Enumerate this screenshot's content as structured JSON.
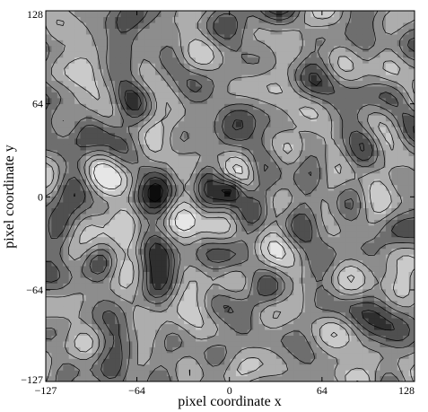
{
  "chart_data": {
    "type": "heatmap",
    "subtype": "filled-contour",
    "title": "",
    "xlabel": "pixel coordinate x",
    "ylabel": "pixel coordinate y",
    "xlim": [
      -127,
      128
    ],
    "ylim": [
      -127,
      128
    ],
    "xticks": [
      -127,
      -64,
      0,
      64,
      128
    ],
    "yticks": [
      -127,
      -64,
      0,
      64,
      128
    ],
    "colormap": "gray",
    "contour_levels": 6,
    "grid": false,
    "legend": "none",
    "features": [
      {
        "x": 2,
        "y": 5,
        "value": "strong minimum (darkest)"
      },
      {
        "x": -75,
        "y": -13,
        "value": "maximum"
      },
      {
        "x": 120,
        "y": -62,
        "value": "maximum"
      },
      {
        "x": 28,
        "y": -80,
        "value": "maximum"
      },
      {
        "x": -92,
        "y": -45,
        "value": "minimum"
      },
      {
        "x": -70,
        "y": 70,
        "value": "minimum"
      }
    ]
  }
}
